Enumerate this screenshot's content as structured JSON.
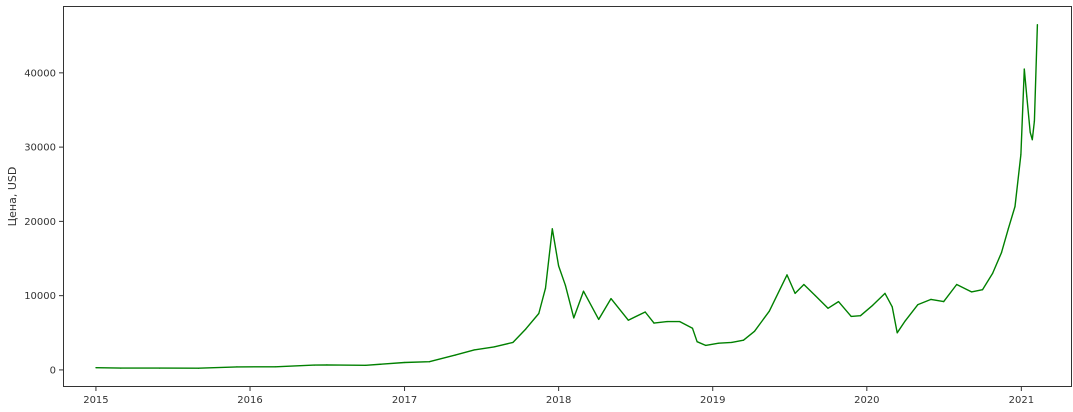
{
  "chart_data": {
    "type": "line",
    "title": "",
    "xlabel": "",
    "ylabel": "Цена, USD",
    "x_ticks": [
      "2015",
      "2016",
      "2017",
      "2018",
      "2019",
      "2020",
      "2021"
    ],
    "y_ticks": [
      "0",
      "10000",
      "20000",
      "30000",
      "40000"
    ],
    "xlim": [
      "2014-10-15",
      "2021-05-01"
    ],
    "ylim": [
      -2300,
      49000
    ],
    "grid": false,
    "legend": "none",
    "series": [
      {
        "color": "#008000",
        "x": [
          "2015-01-01",
          "2015-03-01",
          "2015-06-01",
          "2015-09-01",
          "2015-12-01",
          "2016-03-01",
          "2016-06-01",
          "2016-07-01",
          "2016-10-01",
          "2017-01-01",
          "2017-03-01",
          "2017-05-01",
          "2017-06-15",
          "2017-08-01",
          "2017-09-15",
          "2017-10-15",
          "2017-11-15",
          "2017-12-01",
          "2017-12-17",
          "2018-01-01",
          "2018-01-17",
          "2018-02-06",
          "2018-03-01",
          "2018-04-06",
          "2018-05-05",
          "2018-06-15",
          "2018-07-25",
          "2018-08-15",
          "2018-09-15",
          "2018-10-15",
          "2018-11-14",
          "2018-11-25",
          "2018-12-15",
          "2019-01-15",
          "2019-02-15",
          "2019-03-15",
          "2019-04-10",
          "2019-05-15",
          "2019-06-26",
          "2019-07-15",
          "2019-08-05",
          "2019-09-01",
          "2019-10-01",
          "2019-10-26",
          "2019-11-25",
          "2019-12-17",
          "2020-01-15",
          "2020-02-13",
          "2020-03-01",
          "2020-03-13",
          "2020-04-01",
          "2020-05-01",
          "2020-06-01",
          "2020-07-01",
          "2020-08-01",
          "2020-09-05",
          "2020-10-01",
          "2020-10-25",
          "2020-11-15",
          "2020-12-01",
          "2020-12-17",
          "2020-12-31",
          "2021-01-08",
          "2021-01-14",
          "2021-01-22",
          "2021-01-27",
          "2021-02-01",
          "2021-02-08"
        ],
        "y": [
          300,
          250,
          250,
          230,
          400,
          420,
          650,
          680,
          620,
          1000,
          1100,
          2000,
          2700,
          3100,
          3700,
          5500,
          7600,
          11000,
          19000,
          14000,
          11400,
          7000,
          10600,
          6800,
          9600,
          6700,
          7800,
          6300,
          6500,
          6500,
          5600,
          3800,
          3300,
          3600,
          3700,
          4000,
          5200,
          7900,
          12800,
          10300,
          11500,
          10000,
          8300,
          9200,
          7200,
          7300,
          8700,
          10300,
          8500,
          5000,
          6600,
          8800,
          9500,
          9200,
          11500,
          10500,
          10800,
          13000,
          15800,
          19000,
          22000,
          29000,
          40500,
          36800,
          32000,
          31000,
          33500,
          46500
        ]
      }
    ]
  }
}
